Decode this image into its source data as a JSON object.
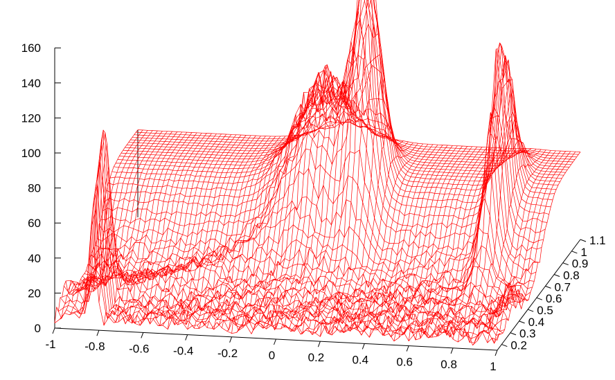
{
  "chart_data": {
    "type": "surface-3d",
    "title": "",
    "color": "#ff0000",
    "x_ticks": [
      "-1",
      "-0.8",
      "-0.6",
      "-0.4",
      "-0.2",
      "0",
      "0.2",
      "0.4",
      "0.6",
      "0.8",
      "1"
    ],
    "y_ticks": [
      "0.2",
      "0.3",
      "0.4",
      "0.5",
      "0.6",
      "0.7",
      "0.8",
      "0.9",
      "1",
      "1.1"
    ],
    "z_ticks": [
      "0",
      "20",
      "40",
      "60",
      "80",
      "100",
      "120",
      "140",
      "160"
    ],
    "xlim": [
      -1,
      1
    ],
    "ylim": [
      0.15,
      1.1
    ],
    "zlim": [
      0,
      160
    ],
    "plane_height": 50,
    "features": [
      {
        "label": "narrow spike",
        "x": -0.83,
        "y": 0.25,
        "peak": 110
      },
      {
        "label": "broad band",
        "x_range": [
          -0.25,
          0.15
        ],
        "y_range": [
          0.45,
          1.0
        ],
        "height": 100
      },
      {
        "label": "central peak",
        "x": 0.15,
        "y": 0.75,
        "peak": 170
      },
      {
        "label": "right peak",
        "x": 0.78,
        "y": 0.75,
        "peak": 130
      }
    ]
  }
}
